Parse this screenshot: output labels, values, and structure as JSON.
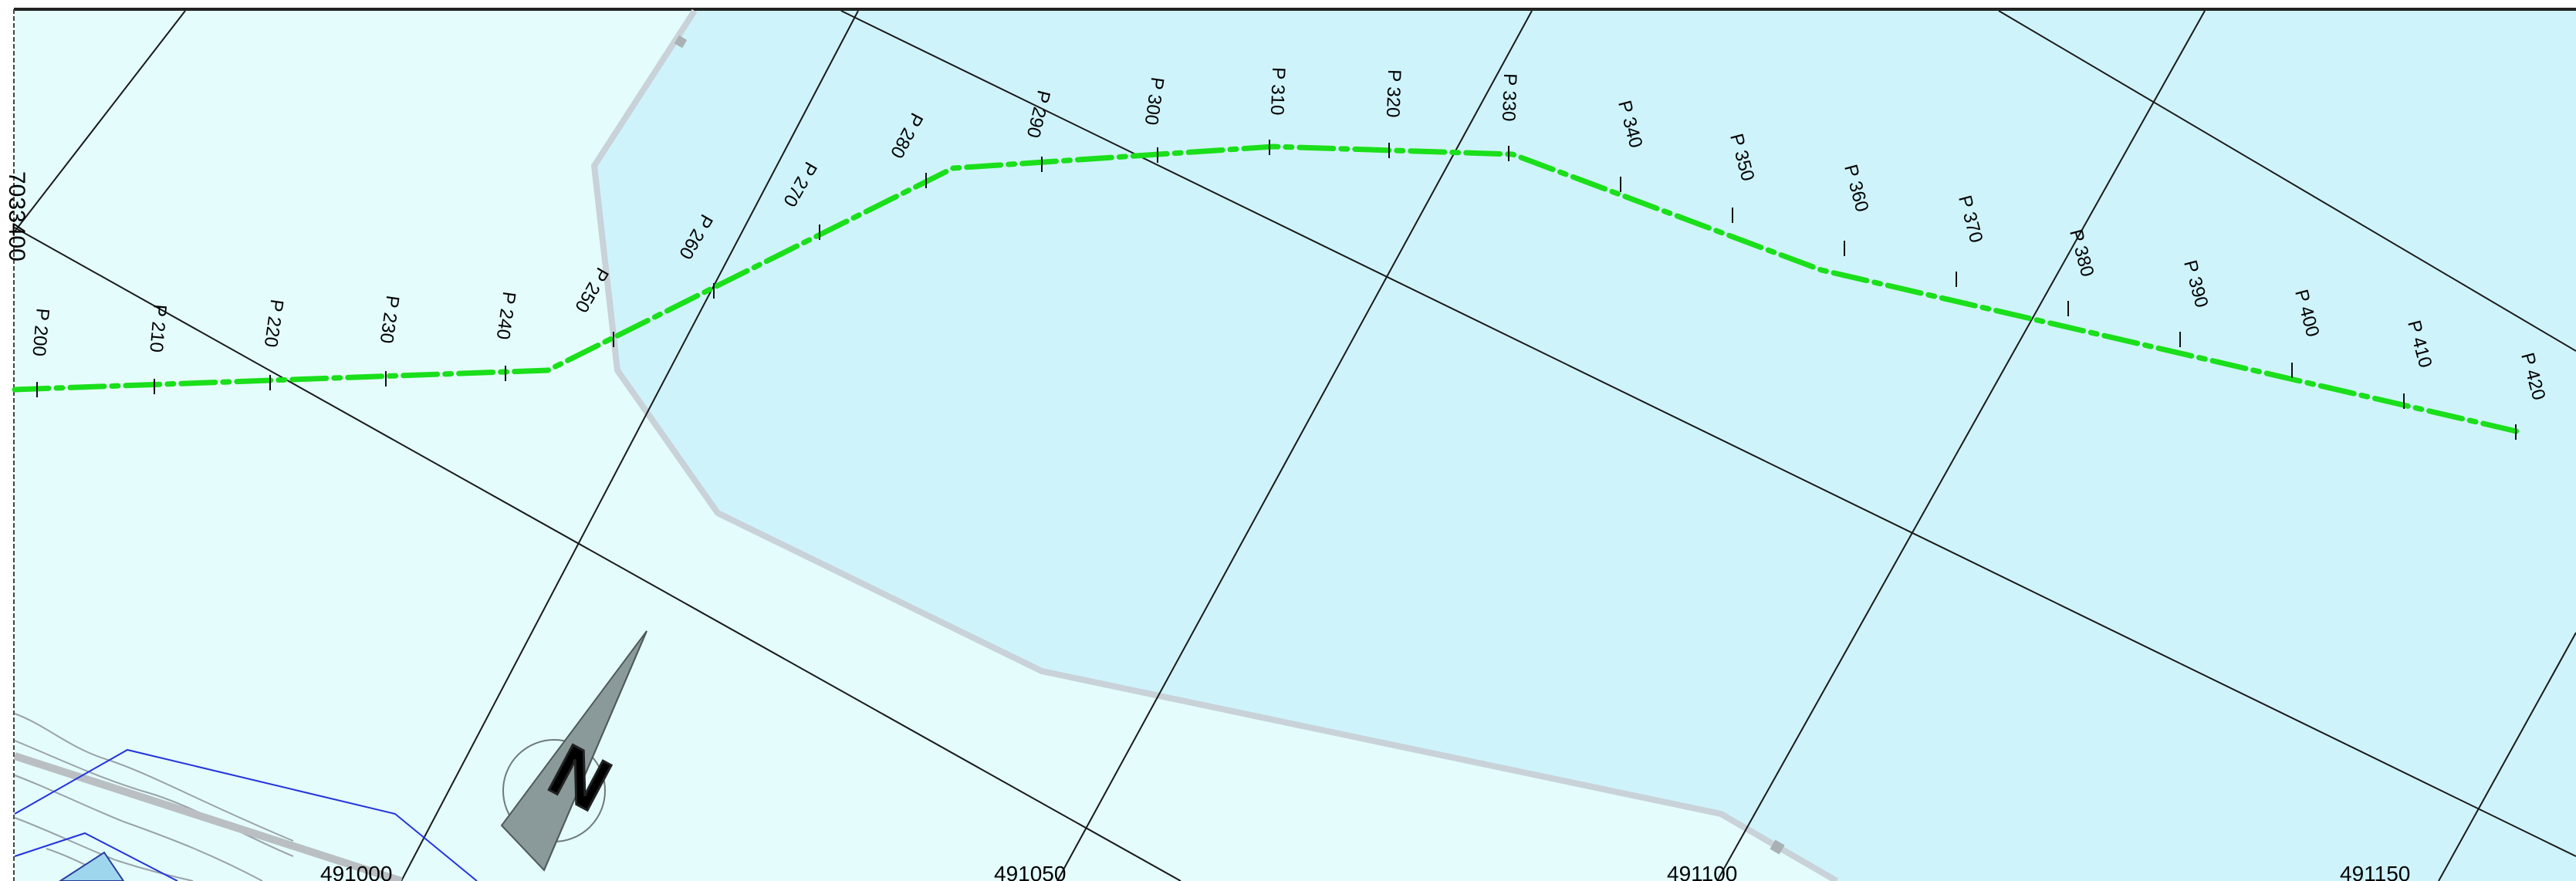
{
  "map": {
    "northing_label": "7033400",
    "easting_labels": [
      "491000",
      "491050",
      "491100",
      "491150"
    ],
    "north_arrow_letter": "N",
    "stations": [
      "P 200",
      "P 210",
      "P 220",
      "P 230",
      "P 240",
      "P 250",
      "P 260",
      "P 270",
      "P 280",
      "P 290",
      "P 300",
      "P 310",
      "P 320",
      "P 330",
      "P 340",
      "P 350",
      "P 360",
      "P 370",
      "P 380",
      "P 390",
      "P 400",
      "P 410",
      "P 420"
    ],
    "colors": {
      "land": "#e4fcfc",
      "water": "#cff3fa",
      "shore": "#c8d2d8",
      "alignment": "#1adf1a",
      "grid": "#1a1a1a",
      "plot_boundary": "#2233dd",
      "north_arrow": "#8a9a9a"
    }
  }
}
